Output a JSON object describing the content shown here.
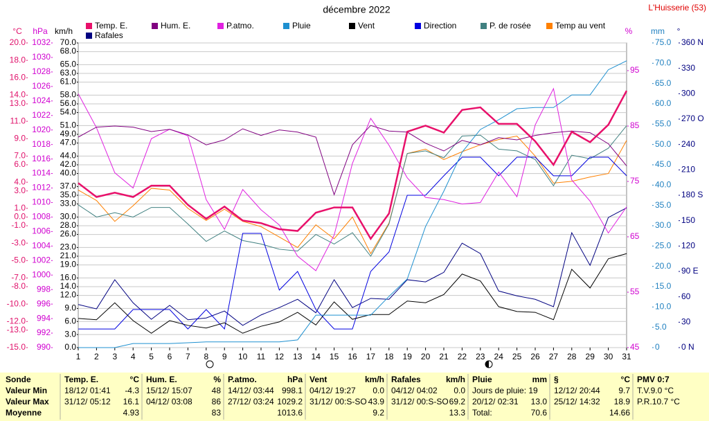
{
  "header": {
    "site": "L'Huisserie (53)"
  },
  "chart_data": {
    "type": "line",
    "title": "décembre 2022",
    "x": [
      1,
      2,
      3,
      4,
      5,
      6,
      7,
      8,
      9,
      10,
      11,
      12,
      13,
      14,
      15,
      16,
      17,
      18,
      19,
      20,
      21,
      22,
      23,
      24,
      25,
      26,
      27,
      28,
      29,
      30,
      31
    ],
    "xlim": [
      1,
      31
    ],
    "xticks": [
      1,
      2,
      3,
      4,
      5,
      6,
      7,
      8,
      9,
      10,
      11,
      12,
      13,
      14,
      15,
      16,
      17,
      18,
      19,
      20,
      21,
      22,
      23,
      24,
      25,
      26,
      27,
      28,
      29,
      30,
      31
    ],
    "axes": [
      {
        "label": "°C",
        "color": "#e0106a",
        "lim": [
          -15,
          20
        ],
        "ticks": [
          {
            "value": 20,
            "label": "20.0"
          },
          {
            "value": 18,
            "label": "18.0"
          },
          {
            "value": 16,
            "label": "16.0"
          },
          {
            "value": 14,
            "label": "14.0"
          },
          {
            "value": 13,
            "label": "13.0"
          },
          {
            "value": 11,
            "label": "11.0"
          },
          {
            "value": 9,
            "label": "9.0"
          },
          {
            "value": 7,
            "label": "7.0"
          },
          {
            "value": 6,
            "label": "6.0"
          },
          {
            "value": 4,
            "label": "4.0"
          },
          {
            "value": 3,
            "label": "3.0"
          },
          {
            "value": 1,
            "label": "1.0"
          },
          {
            "value": 0,
            "label": "0.0"
          },
          {
            "value": -1,
            "label": "-1.0"
          },
          {
            "value": -3,
            "label": "-3.0"
          },
          {
            "value": -5,
            "label": "-5.0"
          },
          {
            "value": -7,
            "label": "-7.0"
          },
          {
            "value": -8,
            "label": "-8.0"
          },
          {
            "value": -10,
            "label": "-10.0"
          },
          {
            "value": -12,
            "label": "-12.0"
          },
          {
            "value": -13,
            "label": "-13.0"
          },
          {
            "value": -15,
            "label": "-15.0"
          }
        ]
      },
      {
        "label": "hPa",
        "color": "#d000d0",
        "lim": [
          990,
          1032
        ],
        "ticks": [
          1032,
          1030,
          1028,
          1026,
          1024,
          1022,
          1020,
          1018,
          1016,
          1014,
          1012,
          1010,
          1008,
          1006,
          1004,
          1002,
          1000,
          998,
          996,
          994,
          992,
          990
        ]
      },
      {
        "label": "km/h",
        "color": "#000000",
        "grid": true,
        "lim": [
          0,
          70
        ],
        "ticks": [
          {
            "value": 70,
            "label": "70.0"
          },
          {
            "value": 68,
            "label": "68.0"
          },
          {
            "value": 65,
            "label": "65.0"
          },
          {
            "value": 63,
            "label": "63.0"
          },
          {
            "value": 61,
            "label": "61.0"
          },
          {
            "value": 58,
            "label": "58.0"
          },
          {
            "value": 56,
            "label": "56.0"
          },
          {
            "value": 54,
            "label": "54.0"
          },
          {
            "value": 51,
            "label": "51.0"
          },
          {
            "value": 49,
            "label": "49.0"
          },
          {
            "value": 47,
            "label": "47.0"
          },
          {
            "value": 44,
            "label": "44.0"
          },
          {
            "value": 42,
            "label": "42.0"
          },
          {
            "value": 40,
            "label": "40.0"
          },
          {
            "value": 37,
            "label": "37.0"
          },
          {
            "value": 35,
            "label": "35.0"
          },
          {
            "value": 33,
            "label": "33.0"
          },
          {
            "value": 30,
            "label": "30.0"
          },
          {
            "value": 28,
            "label": "28.0"
          },
          {
            "value": 26,
            "label": "26.0"
          },
          {
            "value": 23,
            "label": "23.0"
          },
          {
            "value": 21,
            "label": "21.0"
          },
          {
            "value": 19,
            "label": "19.0"
          },
          {
            "value": 16,
            "label": "16.0"
          },
          {
            "value": 14,
            "label": "14.0"
          },
          {
            "value": 12,
            "label": "12.0"
          },
          {
            "value": 9,
            "label": "9.0"
          },
          {
            "value": 6,
            "label": "6.0"
          },
          {
            "value": 3,
            "label": "3.0"
          },
          {
            "value": 0,
            "label": "0.0"
          }
        ]
      },
      {
        "label": "%",
        "color": "#d000d0",
        "lim": [
          45,
          100
        ],
        "ticks": [
          95,
          85,
          75,
          65,
          55,
          45
        ]
      },
      {
        "label": "mm",
        "color": "#2080c0",
        "lim": [
          0,
          75
        ],
        "ticks": [
          {
            "value": 75,
            "label": "75.0"
          },
          {
            "value": 70,
            "label": "70.0"
          },
          {
            "value": 65,
            "label": "65.0"
          },
          {
            "value": 60,
            "label": "60.0"
          },
          {
            "value": 55,
            "label": "55.0"
          },
          {
            "value": 50,
            "label": "50.0"
          },
          {
            "value": 45,
            "label": "45.0"
          },
          {
            "value": 40,
            "label": "40.0"
          },
          {
            "value": 35,
            "label": "35.0"
          },
          {
            "value": 30,
            "label": "30.0"
          },
          {
            "value": 25,
            "label": "25.0"
          },
          {
            "value": 20,
            "label": "20.0"
          },
          {
            "value": 15,
            "label": "15.0"
          },
          {
            "value": 10,
            "label": "10.0"
          },
          {
            "value": 5,
            "label": "5.0"
          },
          0
        ]
      },
      {
        "label": "°",
        "color": "#000080",
        "lim": [
          0,
          360
        ],
        "ticks": [
          {
            "value": 360,
            "label": "360 N"
          },
          330,
          300,
          {
            "value": 270,
            "label": "270 O"
          },
          240,
          210,
          {
            "value": 180,
            "label": "180 S"
          },
          150,
          120,
          {
            "value": 90,
            "label": "90 E"
          },
          60,
          30,
          {
            "value": 0,
            "label": "0 N"
          }
        ]
      }
    ],
    "series": [
      {
        "name": "Temp. E.",
        "color": "#e8106a",
        "axis": "°C",
        "values": [
          3.9,
          2.3,
          2.8,
          2.3,
          3.6,
          3.6,
          1.4,
          -0.2,
          1.2,
          -0.4,
          -0.7,
          -1.4,
          -1.6,
          0.5,
          1.1,
          1.1,
          -2.5,
          0.4,
          9.8,
          10.5,
          9.7,
          12.3,
          12.6,
          10.7,
          10.7,
          8.7,
          6.0,
          9.8,
          8.6,
          10.6,
          14.5
        ]
      },
      {
        "name": "Hum. E.",
        "color": "#800080",
        "axis": "%",
        "values": [
          83,
          84.8,
          85,
          84.8,
          84,
          84.4,
          83.4,
          81.6,
          82.5,
          84.5,
          83.3,
          84.3,
          83.9,
          83,
          72.6,
          81.6,
          85.1,
          84.1,
          83.9,
          81.9,
          80.5,
          82.4,
          81.6,
          82.9,
          82.5,
          83.3,
          83.8,
          84.1,
          83.8,
          81.8,
          77.8
        ]
      },
      {
        "name": "P.atmo.",
        "color": "#e020e0",
        "axis": "hPa",
        "values": [
          1025.0,
          1020.3,
          1014.1,
          1012.0,
          1018.8,
          1020.1,
          1019.2,
          1010.4,
          1006.3,
          1011.8,
          1009.0,
          1006.9,
          1002.6,
          1000.6,
          1005.5,
          1015.4,
          1021.6,
          1017.9,
          1013.4,
          1010.7,
          1010.4,
          1009.8,
          1010.0,
          1014.2,
          1010.8,
          1020.7,
          1025.7,
          1013.1,
          1010.2,
          1005.8,
          1009.4
        ]
      },
      {
        "name": "Pluie",
        "color": "#1e90d0",
        "axis": "mm",
        "values": [
          0,
          0,
          0,
          1.0,
          1.0,
          1.0,
          1.2,
          1.4,
          1.4,
          1.4,
          1.4,
          1.4,
          1.9,
          8.0,
          8.0,
          8.0,
          8.0,
          12.6,
          16.9,
          29.8,
          38.5,
          48.1,
          53.7,
          56.1,
          58.8,
          59.1,
          59.1,
          62.2,
          62.2,
          68.4,
          70.6
        ]
      },
      {
        "name": "Vent",
        "color": "#000000",
        "axis": "km/h",
        "values": [
          6.7,
          6.4,
          10.3,
          6.2,
          3.3,
          6.2,
          5.1,
          4.5,
          5.7,
          3.3,
          4.9,
          5.9,
          8.1,
          5.2,
          10.5,
          6.5,
          7.6,
          7.6,
          10.7,
          10.3,
          12.2,
          16.9,
          15.3,
          9.4,
          8.3,
          8.1,
          6.4,
          18.0,
          13.7,
          20.4,
          21.6
        ]
      },
      {
        "name": "Direction",
        "color": "#0000e0",
        "axis": "°",
        "values": [
          22,
          22,
          22,
          45,
          45,
          45,
          22,
          45,
          22,
          135,
          135,
          68,
          90,
          45,
          22,
          22,
          90,
          113,
          180,
          180,
          203,
          225,
          225,
          203,
          225,
          225,
          203,
          203,
          225,
          225,
          203
        ]
      },
      {
        "name": "P. de rosée",
        "color": "#408080",
        "axis": "°C",
        "values": [
          1.4,
          0.0,
          0.5,
          0.0,
          1.1,
          1.1,
          -0.8,
          -2.8,
          -1.6,
          -2.7,
          -3.1,
          -3.7,
          -3.9,
          -2.0,
          -3.1,
          -1.8,
          -4.5,
          -0.8,
          7.3,
          7.6,
          6.8,
          9.3,
          9.4,
          7.8,
          7.6,
          6.6,
          3.6,
          7.1,
          6.7,
          7.9,
          10.5
        ]
      },
      {
        "name": "Temp au vent",
        "color": "#ff8000",
        "axis": "°C",
        "values": [
          3.1,
          1.9,
          -0.5,
          1.3,
          3.3,
          3.1,
          1.0,
          -0.4,
          0.9,
          -0.5,
          -1.1,
          -2.3,
          -3.5,
          -0.9,
          -2.5,
          0.0,
          -4.2,
          -0.7,
          7.3,
          7.8,
          6.6,
          7.5,
          8.3,
          8.9,
          9.3,
          7.0,
          3.9,
          4.1,
          4.6,
          5.0,
          8.8
        ]
      },
      {
        "name": "Rafales",
        "color": "#000080",
        "axis": "km/h",
        "values": [
          9.9,
          8.9,
          15.6,
          10.3,
          6.5,
          9.7,
          6.4,
          6.8,
          8.4,
          5.1,
          7.5,
          9.2,
          11.1,
          8.0,
          15.6,
          9.2,
          11.3,
          11.1,
          15.6,
          15.1,
          17.3,
          24.0,
          21.6,
          13.0,
          11.9,
          11.1,
          9.4,
          26.4,
          18.9,
          29.9,
          32.1
        ]
      }
    ]
  },
  "summary": {
    "row_labels": [
      "Sonde",
      "Valeur Min",
      "Valeur Max",
      "Moyenne"
    ],
    "columns": [
      {
        "title": "Temp. E.",
        "unit": "°C",
        "rows": [
          [
            "18/12/ 01:41",
            "-4.3"
          ],
          [
            "31/12/ 05:12",
            "16.1"
          ],
          [
            null,
            "4.93"
          ]
        ]
      },
      {
        "title": "Hum. E.",
        "unit": "%",
        "rows": [
          [
            "15/12/ 15:07",
            "48"
          ],
          [
            "04/12/ 03:08",
            "86"
          ],
          [
            null,
            "83"
          ]
        ]
      },
      {
        "title": "P.atmo.",
        "unit": "hPa",
        "rows": [
          [
            "14/12/ 03:44",
            "998.1"
          ],
          [
            "27/12/ 03:24",
            "1029.2"
          ],
          [
            null,
            "1013.6"
          ]
        ]
      },
      {
        "title": "Vent",
        "unit": "km/h",
        "rows": [
          [
            "04/12/ 19:27",
            "0.0"
          ],
          [
            "31/12/ 00:S-SO",
            "43.9"
          ],
          [
            null,
            "9.2"
          ]
        ]
      },
      {
        "title": "Rafales",
        "unit": "km/h",
        "rows": [
          [
            "04/12/ 04:02",
            "0.0"
          ],
          [
            "31/12/ 00:S-SO",
            "69.2"
          ],
          [
            null,
            "13.3"
          ]
        ]
      },
      {
        "title": "Pluie",
        "unit": "mm",
        "rows": [
          [
            "Jours de pluie: 19",
            null
          ],
          [
            "20/12/ 02:31",
            "13.0"
          ],
          [
            "Total:",
            "70.6"
          ]
        ]
      },
      {
        "title": "§",
        "unit": "°C",
        "rows": [
          [
            "12/12/ 20:44",
            "9.7"
          ],
          [
            "25/12/ 14:32",
            "18.9"
          ],
          [
            null,
            "14.66"
          ]
        ]
      },
      {
        "title": "PMV 0:7",
        "unit": null,
        "rows": [
          [
            "T.V.9.0 °C",
            null
          ],
          [
            "P.R.10.7 °C",
            null
          ]
        ]
      }
    ]
  }
}
